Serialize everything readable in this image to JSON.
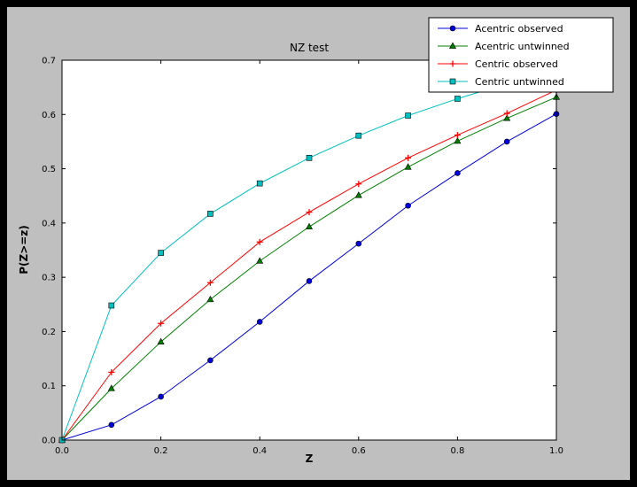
{
  "figure": {
    "outer_bg": "#000000",
    "figure_bg": "#bfbfbf",
    "plot_bg": "#ffffff"
  },
  "chart_data": {
    "type": "line",
    "title": "NZ test",
    "xlabel": "Z",
    "ylabel": "P(Z>=z)",
    "xlim": [
      0.0,
      1.0
    ],
    "ylim": [
      0.0,
      0.7
    ],
    "xticks": [
      0.0,
      0.2,
      0.4,
      0.6,
      0.8,
      1.0
    ],
    "yticks": [
      0.0,
      0.1,
      0.2,
      0.3,
      0.4,
      0.5,
      0.6,
      0.7
    ],
    "grid": false,
    "legend_position": "upper-right-overlapping-top",
    "x": [
      0.0,
      0.1,
      0.2,
      0.3,
      0.4,
      0.5,
      0.6,
      0.7,
      0.8,
      0.9,
      1.0
    ],
    "series": [
      {
        "name": "Acentric observed",
        "color": "#0000dd",
        "marker": "circle",
        "values": [
          0.0,
          0.028,
          0.08,
          0.147,
          0.218,
          0.293,
          0.362,
          0.432,
          0.492,
          0.55,
          0.601
        ]
      },
      {
        "name": "Acentric untwinned",
        "color": "#007f00",
        "marker": "triangle",
        "values": [
          0.0,
          0.095,
          0.181,
          0.259,
          0.33,
          0.393,
          0.451,
          0.503,
          0.551,
          0.593,
          0.632
        ]
      },
      {
        "name": "Centric observed",
        "color": "#ff0000",
        "marker": "plus",
        "values": [
          0.0,
          0.125,
          0.215,
          0.29,
          0.365,
          0.42,
          0.472,
          0.52,
          0.562,
          0.602,
          0.645
        ]
      },
      {
        "name": "Centric untwinned",
        "color": "#00bfbf",
        "marker": "square",
        "values": [
          0.0,
          0.248,
          0.345,
          0.417,
          0.473,
          0.52,
          0.561,
          0.598,
          0.629,
          0.657,
          0.683
        ]
      }
    ]
  }
}
